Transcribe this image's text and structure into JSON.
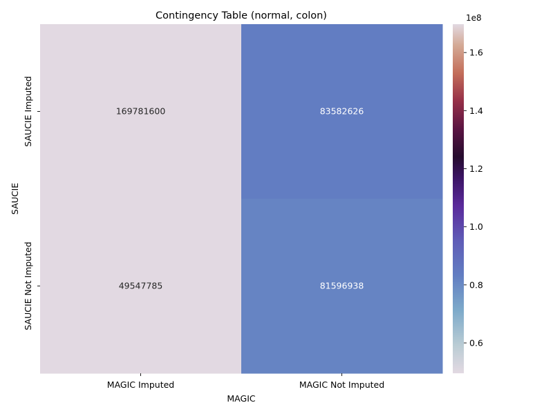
{
  "chart_data": {
    "type": "heatmap",
    "title": "Contingency Table (normal, colon)",
    "xlabel": "MAGIC",
    "ylabel": "SAUCIE",
    "x_categories": [
      "MAGIC Imputed",
      "MAGIC Not Imputed"
    ],
    "y_categories": [
      "SAUCIE Imputed",
      "SAUCIE Not Imputed"
    ],
    "values": [
      [
        169781600,
        83582626
      ],
      [
        49547785,
        81596938
      ]
    ],
    "cell_labels": [
      [
        "169781600",
        "83582626"
      ],
      [
        "49547785",
        "81596938"
      ]
    ],
    "colormap": "twilight",
    "colorbar": {
      "vmin": 49547785,
      "vmax": 169781600,
      "ticks": [
        0.6,
        0.8,
        1.0,
        1.2,
        1.4,
        1.6
      ],
      "tick_labels": [
        "0.6",
        "0.8",
        "1.0",
        "1.2",
        "1.4",
        "1.6"
      ],
      "multiplier_label": "1e8"
    },
    "grid": false,
    "legend": "colorbar-right"
  }
}
